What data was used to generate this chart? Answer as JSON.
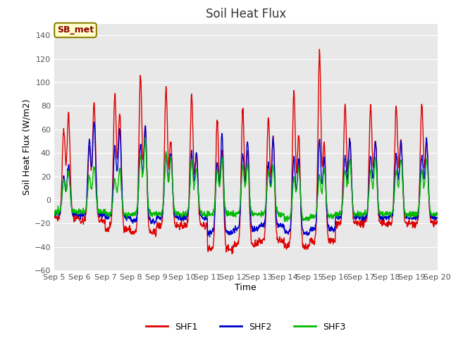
{
  "title": "Soil Heat Flux",
  "xlabel": "Time",
  "ylabel": "Soil Heat Flux (W/m2)",
  "ylim": [
    -60,
    150
  ],
  "yticks": [
    -60,
    -40,
    -20,
    0,
    20,
    40,
    60,
    80,
    100,
    120,
    140
  ],
  "background_color": "#e8e8e8",
  "legend_label": "SB_met",
  "series_labels": [
    "SHF1",
    "SHF2",
    "SHF3"
  ],
  "series_colors": [
    "#dd0000",
    "#0000cc",
    "#00bb00"
  ],
  "line_width": 1.0,
  "n_days": 15,
  "pts_per_day": 96,
  "shf1_peaks": [
    60,
    110,
    45,
    125,
    90,
    115,
    105,
    100,
    93,
    80,
    89,
    65,
    67,
    76,
    76,
    75,
    70,
    87,
    92,
    95,
    125,
    80
  ],
  "shf2_peaks": [
    28,
    28,
    67,
    67,
    60,
    60,
    63,
    63,
    52,
    40,
    52,
    40,
    47,
    55,
    55,
    50,
    43,
    52,
    52,
    35,
    70,
    35
  ],
  "shf3_peaks": [
    27,
    27,
    33,
    33,
    30,
    30,
    58,
    58,
    63,
    40,
    52,
    30,
    40,
    40,
    45,
    35,
    38,
    33,
    35,
    33,
    35,
    30
  ],
  "shf1_nights": [
    -15,
    -15,
    -18,
    -22,
    -25,
    -28,
    -28,
    -22,
    -22,
    -22,
    -22,
    -20,
    -42,
    -38,
    -38,
    -35,
    -35,
    -38,
    -40,
    -38,
    -35,
    -35
  ],
  "shf2_nights": [
    -12,
    -12,
    -13,
    -15,
    -15,
    -18,
    -18,
    -15,
    -15,
    -15,
    -15,
    -18,
    -28,
    -25,
    -25,
    -22,
    -22,
    -28,
    -28,
    -25,
    -25,
    -25
  ],
  "shf3_nights": [
    -10,
    -10,
    -10,
    -12,
    -12,
    -12,
    -12,
    -12,
    -12,
    -12,
    -12,
    -12,
    -12,
    -12,
    -12,
    -12,
    -12,
    -16,
    -16,
    -14,
    -14,
    -14
  ]
}
